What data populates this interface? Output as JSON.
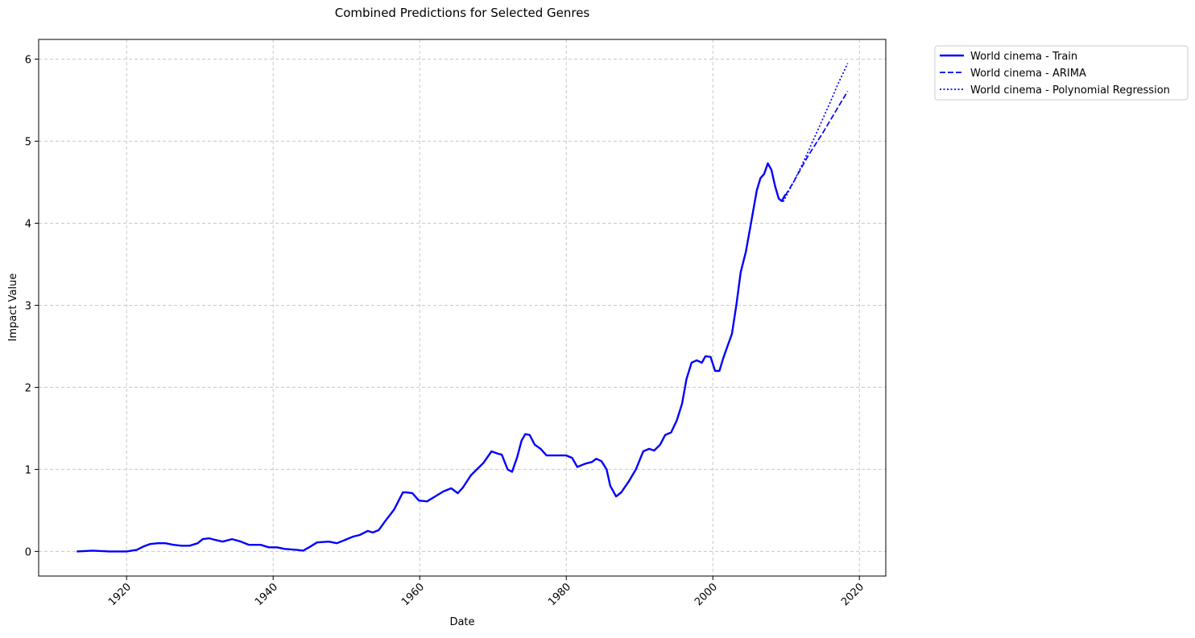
{
  "chart_data": {
    "type": "line",
    "title": "Combined Predictions for Selected Genres",
    "x_label": "Date",
    "y_label": "Impact Value",
    "xlim": [
      1908,
      2023.6
    ],
    "ylim": [
      -0.3,
      6.24
    ],
    "xticks": [
      1920,
      1940,
      1960,
      1980,
      2000,
      2020
    ],
    "yticks": [
      0,
      1,
      2,
      3,
      4,
      5,
      6
    ],
    "grid": true,
    "legend": "outside upper right",
    "series": [
      {
        "name": "World cinema - Train",
        "color": "#0000ff",
        "style": "solid",
        "x": [
          1913.2,
          1915.4,
          1917.6,
          1920.0,
          1921.4,
          1922.3,
          1923.2,
          1924.3,
          1925.3,
          1926.4,
          1927.5,
          1928.6,
          1929.7,
          1930.4,
          1931.3,
          1932.1,
          1933.1,
          1934.4,
          1935.6,
          1936.7,
          1938.3,
          1939.4,
          1940.5,
          1941.6,
          1943.2,
          1944.1,
          1944.9,
          1946.0,
          1947.6,
          1948.7,
          1949.8,
          1950.9,
          1951.8,
          1952.9,
          1953.6,
          1954.4,
          1955.3,
          1956.5,
          1957.7,
          1958.2,
          1959.0,
          1959.9,
          1961.0,
          1962.1,
          1963.2,
          1964.3,
          1965.2,
          1965.9,
          1967.0,
          1968.7,
          1969.8,
          1970.7,
          1971.2,
          1972.0,
          1972.6,
          1973.3,
          1973.9,
          1974.4,
          1975.0,
          1975.7,
          1976.5,
          1977.3,
          1978.2,
          1979.2,
          1980.0,
          1980.8,
          1981.5,
          1982.6,
          1983.5,
          1984.1,
          1984.8,
          1985.5,
          1986.0,
          1986.8,
          1987.5,
          1988.5,
          1989.5,
          1990.5,
          1991.3,
          1992.0,
          1992.8,
          1993.5,
          1994.3,
          1995.1,
          1995.8,
          1996.4,
          1997.1,
          1997.8,
          1998.5,
          1999.0,
          1999.7,
          2000.3,
          2000.9,
          2001.4,
          2002.0,
          2002.6,
          2003.2,
          2003.8,
          2004.5,
          2005.2,
          2006.0,
          2006.5,
          2007.0,
          2007.5,
          2008.0,
          2008.5,
          2009.0,
          2009.4,
          2009.9
        ],
        "values": [
          0,
          0.01,
          0,
          0,
          0.02,
          0.06,
          0.09,
          0.1,
          0.1,
          0.08,
          0.07,
          0.07,
          0.1,
          0.15,
          0.16,
          0.14,
          0.12,
          0.15,
          0.12,
          0.08,
          0.08,
          0.05,
          0.05,
          0.03,
          0.02,
          0.01,
          0.05,
          0.11,
          0.12,
          0.1,
          0.14,
          0.18,
          0.2,
          0.25,
          0.23,
          0.26,
          0.37,
          0.51,
          0.72,
          0.72,
          0.71,
          0.62,
          0.61,
          0.67,
          0.73,
          0.77,
          0.71,
          0.78,
          0.93,
          1.08,
          1.22,
          1.19,
          1.18,
          1.0,
          0.97,
          1.15,
          1.35,
          1.43,
          1.42,
          1.3,
          1.25,
          1.17,
          1.17,
          1.17,
          1.17,
          1.14,
          1.03,
          1.07,
          1.09,
          1.13,
          1.1,
          1.0,
          0.8,
          0.67,
          0.72,
          0.85,
          1.0,
          1.22,
          1.25,
          1.23,
          1.3,
          1.42,
          1.45,
          1.6,
          1.8,
          2.1,
          2.3,
          2.33,
          2.3,
          2.38,
          2.37,
          2.2,
          2.2,
          2.35,
          2.5,
          2.65,
          3.0,
          3.4,
          3.65,
          4.0,
          4.4,
          4.55,
          4.6,
          4.73,
          4.65,
          4.45,
          4.3,
          4.27,
          4.35
        ]
      },
      {
        "name": "World cinema - ARIMA",
        "color": "#0000ff",
        "style": "dashed",
        "x": [
          2009.9,
          2011,
          2012,
          2013,
          2014,
          2015,
          2016,
          2017,
          2018.4
        ],
        "values": [
          4.34,
          4.5,
          4.66,
          4.82,
          4.96,
          5.1,
          5.25,
          5.4,
          5.61
        ]
      },
      {
        "name": "World cinema - Polynomial Regression",
        "color": "#0000ff",
        "style": "dotted",
        "x": [
          2009.6,
          2011,
          2012,
          2013,
          2014,
          2015,
          2016,
          2017,
          2018.4
        ],
        "values": [
          4.26,
          4.5,
          4.68,
          4.87,
          5.07,
          5.27,
          5.47,
          5.68,
          5.95
        ]
      }
    ]
  }
}
